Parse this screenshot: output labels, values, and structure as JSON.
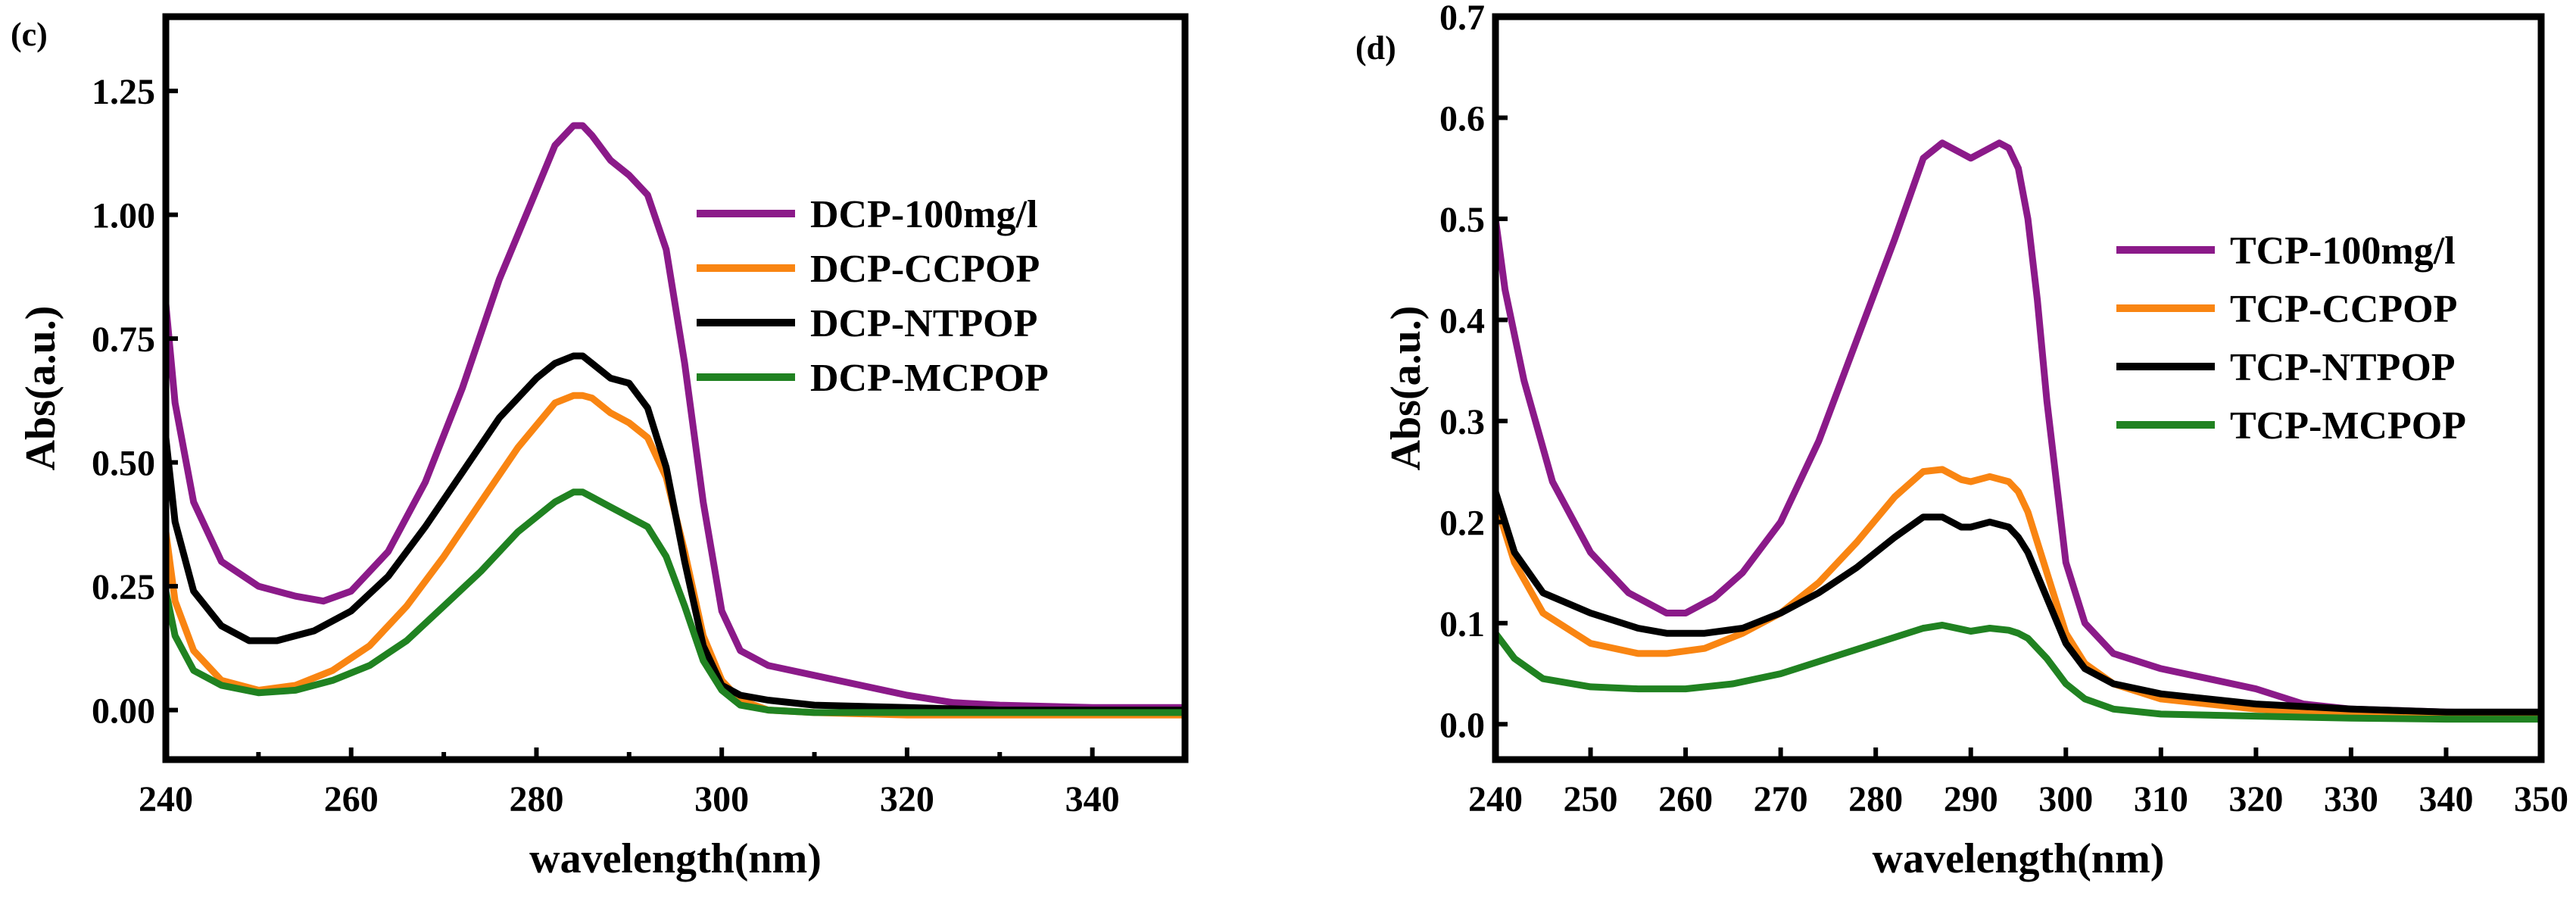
{
  "chart_data": [
    {
      "type": "line",
      "panel_label": "(c)",
      "xlabel": "wavelength(nm)",
      "ylabel": "Abs(a.u.)",
      "xlim": [
        240,
        350
      ],
      "ylim": [
        -0.1,
        1.4
      ],
      "x_ticks": [
        240,
        260,
        280,
        300,
        320,
        340
      ],
      "x_minor_ticks": [
        250,
        270,
        290,
        310,
        330
      ],
      "y_ticks": [
        0.0,
        0.25,
        0.5,
        0.75,
        1.0,
        1.25
      ],
      "y_tick_labels": [
        "0.00",
        "0.25",
        "0.50",
        "0.75",
        "1.00",
        "1.25"
      ],
      "legend_position": "right",
      "series": [
        {
          "name": "DCP-100mg/l",
          "color": "#8b1a89",
          "x": [
            240,
            241,
            243,
            246,
            250,
            254,
            257,
            260,
            264,
            268,
            272,
            276,
            280,
            282,
            284,
            285,
            286,
            288,
            290,
            292,
            294,
            296,
            298,
            300,
            302,
            305,
            310,
            315,
            320,
            325,
            330,
            340,
            350
          ],
          "y": [
            0.82,
            0.62,
            0.42,
            0.3,
            0.25,
            0.23,
            0.22,
            0.24,
            0.32,
            0.46,
            0.65,
            0.87,
            1.05,
            1.14,
            1.18,
            1.18,
            1.16,
            1.11,
            1.08,
            1.04,
            0.93,
            0.7,
            0.42,
            0.2,
            0.12,
            0.09,
            0.07,
            0.05,
            0.03,
            0.015,
            0.01,
            0.005,
            0.005
          ]
        },
        {
          "name": "DCP-CCPOP",
          "color": "#f98512",
          "x": [
            240,
            241,
            243,
            246,
            250,
            254,
            258,
            262,
            266,
            270,
            274,
            278,
            282,
            284,
            285,
            286,
            288,
            290,
            292,
            294,
            296,
            298,
            300,
            302,
            305,
            310,
            320,
            330,
            340,
            350
          ],
          "y": [
            0.36,
            0.22,
            0.12,
            0.06,
            0.04,
            0.05,
            0.08,
            0.13,
            0.21,
            0.31,
            0.42,
            0.53,
            0.62,
            0.635,
            0.635,
            0.63,
            0.6,
            0.58,
            0.55,
            0.47,
            0.32,
            0.15,
            0.06,
            0.02,
            0.0,
            -0.005,
            -0.01,
            -0.01,
            -0.01,
            -0.01
          ]
        },
        {
          "name": "DCP-NTPOP",
          "color": "#000000",
          "x": [
            240,
            241,
            243,
            246,
            249,
            252,
            256,
            260,
            264,
            268,
            272,
            276,
            280,
            282,
            284,
            285,
            286,
            288,
            290,
            292,
            294,
            296,
            298,
            300,
            302,
            305,
            310,
            320,
            330,
            340,
            350
          ],
          "y": [
            0.55,
            0.38,
            0.24,
            0.17,
            0.14,
            0.14,
            0.16,
            0.2,
            0.27,
            0.37,
            0.48,
            0.59,
            0.67,
            0.7,
            0.715,
            0.715,
            0.7,
            0.67,
            0.66,
            0.61,
            0.49,
            0.3,
            0.13,
            0.05,
            0.03,
            0.02,
            0.01,
            0.005,
            0.0,
            0.0,
            0.0
          ]
        },
        {
          "name": "DCP-MCPOP",
          "color": "#208221",
          "x": [
            240,
            241,
            243,
            246,
            250,
            254,
            258,
            262,
            266,
            270,
            274,
            278,
            282,
            284,
            285,
            286,
            288,
            290,
            292,
            294,
            296,
            298,
            300,
            302,
            305,
            310,
            320,
            330,
            340,
            350
          ],
          "y": [
            0.24,
            0.15,
            0.08,
            0.05,
            0.035,
            0.04,
            0.06,
            0.09,
            0.14,
            0.21,
            0.28,
            0.36,
            0.42,
            0.44,
            0.44,
            0.43,
            0.41,
            0.39,
            0.37,
            0.31,
            0.21,
            0.1,
            0.04,
            0.01,
            0.0,
            -0.005,
            -0.005,
            -0.005,
            -0.005,
            -0.005
          ]
        }
      ]
    },
    {
      "type": "line",
      "panel_label": "(d)",
      "xlabel": "wavelength(nm)",
      "ylabel": "Abs(a.u.)",
      "xlim": [
        240,
        350
      ],
      "ylim": [
        -0.035,
        0.7
      ],
      "x_ticks": [
        240,
        250,
        260,
        270,
        280,
        290,
        300,
        310,
        320,
        330,
        340,
        350
      ],
      "y_ticks": [
        0.0,
        0.1,
        0.2,
        0.3,
        0.4,
        0.5,
        0.6,
        0.7
      ],
      "y_tick_labels": [
        "0.0",
        "0.1",
        "0.2",
        "0.3",
        "0.4",
        "0.5",
        "0.6",
        "0.7"
      ],
      "legend_position": "right",
      "series": [
        {
          "name": "TCP-100mg/l",
          "color": "#8b1a89",
          "x": [
            240,
            241,
            243,
            246,
            250,
            254,
            258,
            260,
            263,
            266,
            270,
            274,
            278,
            282,
            285,
            287,
            289,
            290,
            291,
            293,
            294,
            295,
            296,
            297,
            298,
            300,
            302,
            305,
            310,
            315,
            320,
            325,
            330,
            340,
            350
          ],
          "y": [
            0.5,
            0.43,
            0.34,
            0.24,
            0.17,
            0.13,
            0.11,
            0.11,
            0.125,
            0.15,
            0.2,
            0.28,
            0.38,
            0.48,
            0.56,
            0.575,
            0.565,
            0.56,
            0.565,
            0.575,
            0.57,
            0.55,
            0.5,
            0.42,
            0.32,
            0.16,
            0.1,
            0.07,
            0.055,
            0.045,
            0.035,
            0.02,
            0.015,
            0.012,
            0.01
          ]
        },
        {
          "name": "TCP-CCPOP",
          "color": "#f98512",
          "x": [
            240,
            242,
            245,
            250,
            255,
            258,
            262,
            266,
            270,
            274,
            278,
            282,
            285,
            287,
            289,
            290,
            292,
            294,
            295,
            296,
            298,
            300,
            302,
            305,
            310,
            320,
            330,
            340,
            350
          ],
          "y": [
            0.22,
            0.16,
            0.11,
            0.08,
            0.07,
            0.07,
            0.075,
            0.09,
            0.11,
            0.14,
            0.18,
            0.225,
            0.25,
            0.252,
            0.242,
            0.24,
            0.245,
            0.24,
            0.23,
            0.21,
            0.15,
            0.09,
            0.06,
            0.04,
            0.025,
            0.015,
            0.01,
            0.01,
            0.01
          ]
        },
        {
          "name": "TCP-NTPOP",
          "color": "#000000",
          "x": [
            240,
            242,
            245,
            250,
            255,
            258,
            262,
            266,
            270,
            274,
            278,
            282,
            285,
            287,
            289,
            290,
            292,
            294,
            295,
            296,
            298,
            300,
            302,
            305,
            310,
            320,
            330,
            340,
            350
          ],
          "y": [
            0.23,
            0.17,
            0.13,
            0.11,
            0.095,
            0.09,
            0.09,
            0.095,
            0.11,
            0.13,
            0.155,
            0.185,
            0.205,
            0.205,
            0.195,
            0.195,
            0.2,
            0.195,
            0.185,
            0.17,
            0.125,
            0.08,
            0.055,
            0.04,
            0.03,
            0.02,
            0.015,
            0.012,
            0.012
          ]
        },
        {
          "name": "TCP-MCPOP",
          "color": "#208221",
          "x": [
            240,
            242,
            245,
            250,
            255,
            260,
            265,
            270,
            275,
            280,
            285,
            287,
            289,
            290,
            292,
            294,
            295,
            296,
            298,
            300,
            302,
            305,
            310,
            320,
            330,
            340,
            350
          ],
          "y": [
            0.09,
            0.065,
            0.045,
            0.037,
            0.035,
            0.035,
            0.04,
            0.05,
            0.065,
            0.08,
            0.095,
            0.098,
            0.094,
            0.092,
            0.095,
            0.093,
            0.09,
            0.085,
            0.065,
            0.04,
            0.025,
            0.015,
            0.01,
            0.008,
            0.006,
            0.005,
            0.005
          ]
        }
      ]
    }
  ]
}
